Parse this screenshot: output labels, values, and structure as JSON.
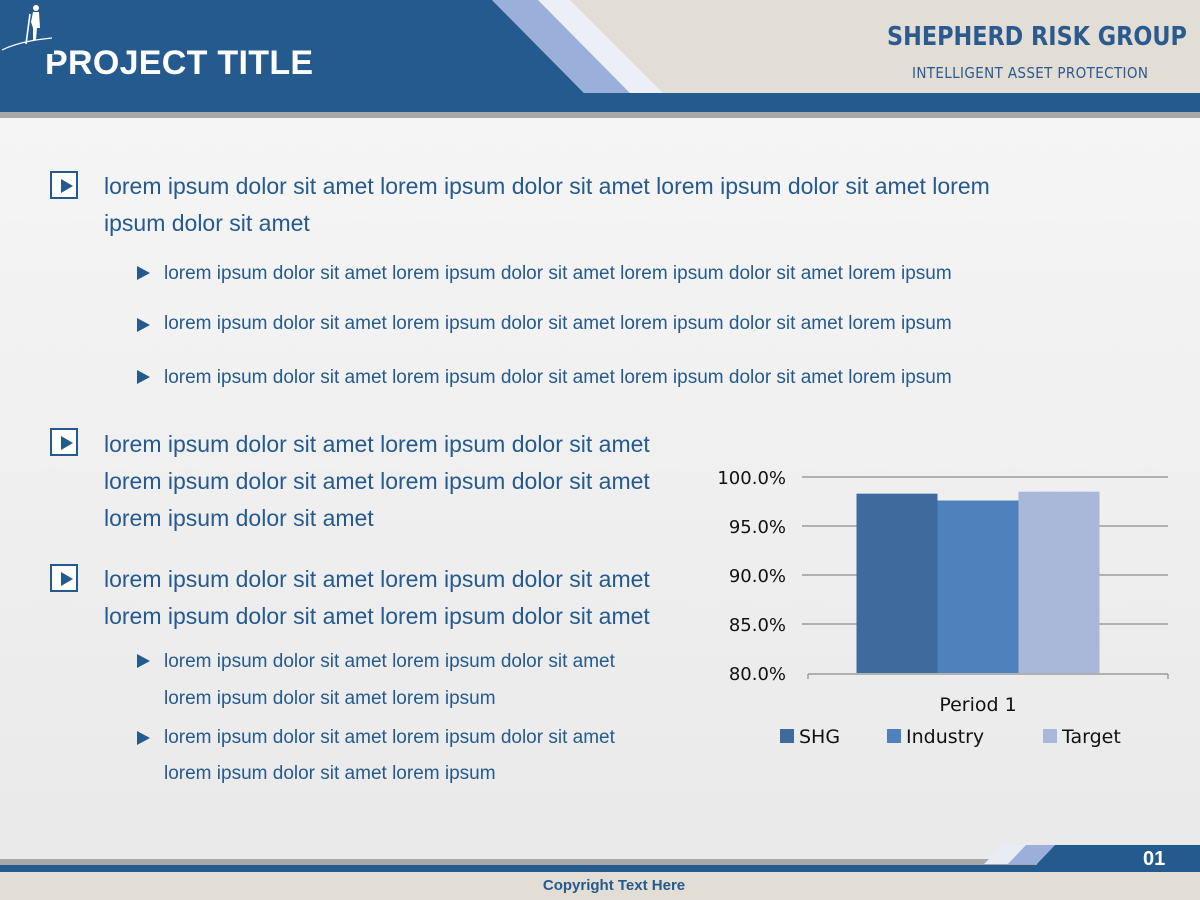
{
  "slide": {
    "title": "PROJECT TITLE",
    "page_number": "01",
    "copyright": "Copyright Text Here"
  },
  "logo": {
    "name": "SHEPHERD RISK GROUP",
    "tagline": "INTELLIGENT ASSET PROTECTION",
    "icon": "shepherd-figure-icon"
  },
  "colors": {
    "primary": "#255a8e",
    "accent_light": "#9ab0da",
    "header_bg": "#e2ddd5"
  },
  "content": {
    "block1": {
      "lines": [
        "lorem ipsum dolor sit amet lorem ipsum dolor sit amet lorem ipsum dolor sit amet lorem",
        "ipsum dolor sit amet"
      ],
      "subitems": [
        "lorem ipsum dolor sit amet lorem ipsum dolor sit amet lorem ipsum dolor sit amet lorem ipsum",
        "lorem ipsum dolor sit amet lorem ipsum dolor sit amet lorem ipsum dolor sit amet lorem ipsum",
        "lorem ipsum dolor sit amet lorem ipsum dolor sit amet lorem ipsum dolor sit amet lorem ipsum"
      ]
    },
    "block2": {
      "lines": [
        "lorem ipsum dolor sit amet lorem ipsum dolor sit amet",
        "lorem ipsum dolor sit amet lorem ipsum dolor sit amet",
        "lorem ipsum dolor sit amet"
      ]
    },
    "block3": {
      "lines": [
        "lorem ipsum dolor sit amet lorem ipsum dolor sit amet",
        "lorem ipsum dolor sit amet lorem ipsum dolor sit amet"
      ],
      "subitems": [
        {
          "lines": [
            "lorem ipsum dolor sit amet lorem ipsum dolor sit amet",
            "lorem ipsum dolor sit amet lorem ipsum"
          ]
        },
        {
          "lines": [
            "lorem ipsum dolor sit amet lorem ipsum dolor sit amet",
            "lorem ipsum dolor sit amet lorem ipsum"
          ]
        }
      ]
    }
  },
  "chart_data": {
    "type": "bar",
    "categories": [
      "Period 1"
    ],
    "series": [
      {
        "name": "SHG",
        "values": [
          98.3
        ],
        "color": "#3f6a9e"
      },
      {
        "name": "Industry",
        "values": [
          97.6
        ],
        "color": "#4f81bd"
      },
      {
        "name": "Target",
        "values": [
          98.5
        ],
        "color": "#a9b8d8"
      }
    ],
    "ylim": [
      80,
      100
    ],
    "yticks": [
      "100.0%",
      "95.0%",
      "90.0%",
      "85.0%",
      "80.0%"
    ],
    "ytick_values": [
      100,
      95,
      90,
      85,
      80
    ],
    "grid": true,
    "legend": "bottom"
  }
}
